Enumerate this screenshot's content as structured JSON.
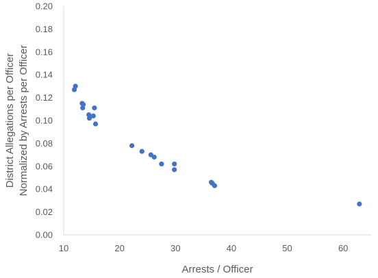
{
  "chart_data": {
    "type": "scatter",
    "xlabel": "Arrests / Officer",
    "ylabel": "District Allegations per Officer",
    "ylabel2": "Normalized by Arrests per Officer",
    "xlim": [
      10,
      65
    ],
    "ylim": [
      0,
      0.2
    ],
    "xticks": [
      "10",
      "20",
      "30",
      "40",
      "50",
      "60"
    ],
    "yticks": [
      "0.00",
      "0.02",
      "0.04",
      "0.06",
      "0.08",
      "0.10",
      "0.12",
      "0.14",
      "0.16",
      "0.18",
      "0.20"
    ],
    "grid": false,
    "marker_color": "#4472C4",
    "axis_color": "#D9D9D9",
    "points": [
      {
        "x": 11.9,
        "y": 0.127
      },
      {
        "x": 12.1,
        "y": 0.13
      },
      {
        "x": 13.3,
        "y": 0.115
      },
      {
        "x": 13.5,
        "y": 0.114
      },
      {
        "x": 13.4,
        "y": 0.111
      },
      {
        "x": 14.5,
        "y": 0.105
      },
      {
        "x": 14.6,
        "y": 0.102
      },
      {
        "x": 15.3,
        "y": 0.104
      },
      {
        "x": 15.5,
        "y": 0.111
      },
      {
        "x": 15.7,
        "y": 0.097
      },
      {
        "x": 22.2,
        "y": 0.078
      },
      {
        "x": 24.0,
        "y": 0.073
      },
      {
        "x": 25.6,
        "y": 0.07
      },
      {
        "x": 26.2,
        "y": 0.068
      },
      {
        "x": 27.5,
        "y": 0.062
      },
      {
        "x": 29.8,
        "y": 0.062
      },
      {
        "x": 29.8,
        "y": 0.057
      },
      {
        "x": 36.4,
        "y": 0.046
      },
      {
        "x": 36.6,
        "y": 0.045
      },
      {
        "x": 37.0,
        "y": 0.043
      },
      {
        "x": 62.9,
        "y": 0.027
      }
    ]
  }
}
